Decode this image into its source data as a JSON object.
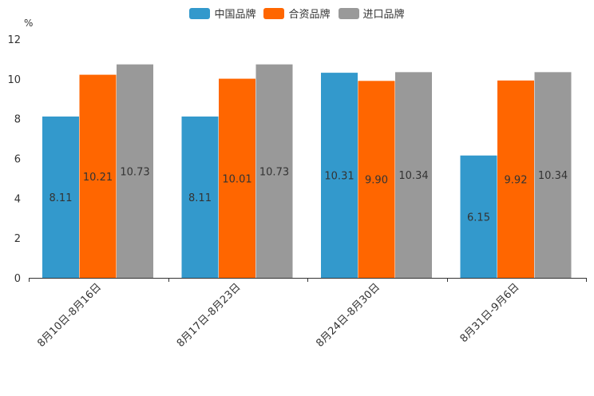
{
  "chart_data": {
    "type": "bar",
    "ylabel": "%",
    "ylim": [
      0,
      12
    ],
    "yticks": [
      0,
      2,
      4,
      6,
      8,
      10,
      12
    ],
    "categories": [
      "8月10日-8月16日",
      "8月17日-8月23日",
      "8月24日-8月30日",
      "8月31日-9月6日"
    ],
    "series": [
      {
        "name": "中国品牌",
        "color": "#3399cc",
        "values": [
          8.11,
          8.11,
          10.31,
          6.15
        ],
        "labels": [
          "8.11",
          "8.11",
          "10.31",
          "6.15"
        ]
      },
      {
        "name": "合资品牌",
        "color": "#ff6600",
        "values": [
          10.21,
          10.01,
          9.9,
          9.92
        ],
        "labels": [
          "10.21",
          "10.01",
          "9.90",
          "9.92"
        ]
      },
      {
        "name": "进口品牌",
        "color": "#999999",
        "values": [
          10.73,
          10.73,
          10.34,
          10.34
        ],
        "labels": [
          "10.73",
          "10.73",
          "10.34",
          "10.34"
        ]
      }
    ],
    "legend_position": "top-center"
  }
}
